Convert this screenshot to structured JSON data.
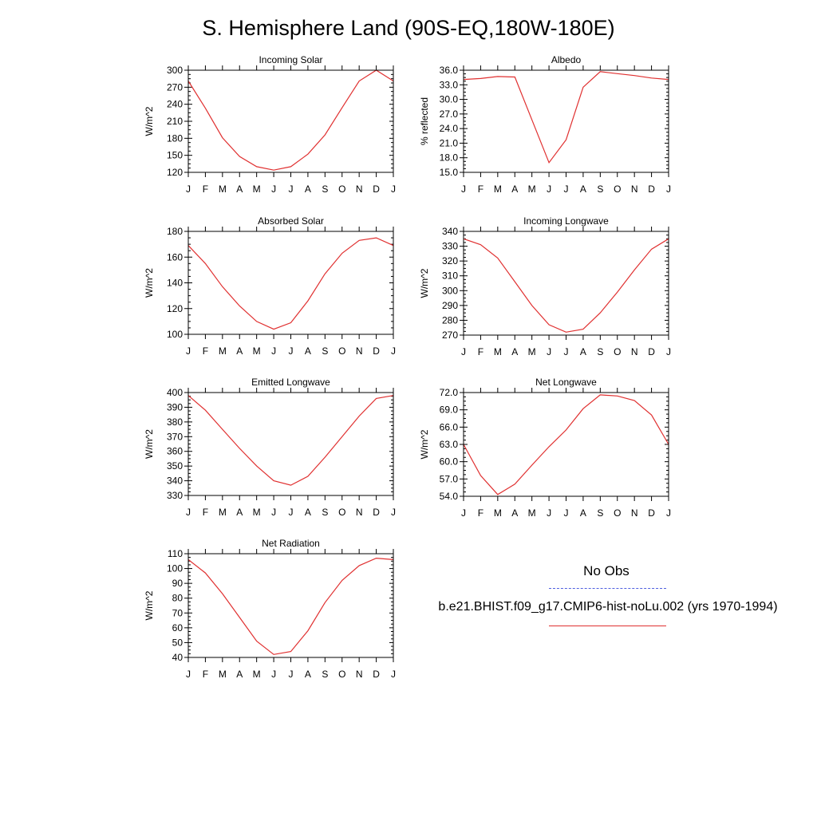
{
  "page_title": "S. Hemisphere Land (90S-EQ,180W-180E)",
  "legend": {
    "obs_label": "No Obs",
    "model_label": "b.e21.BHIST.f09_g17.CMIP6-hist-noLu.002 (yrs 1970-1994)",
    "obs_color": "#4f5fe0",
    "model_color": "#e03030"
  },
  "chart_data": [
    {
      "type": "line",
      "title": "Incoming Solar",
      "ylabel": "W/m^2",
      "x": [
        "J",
        "F",
        "M",
        "A",
        "M",
        "J",
        "J",
        "A",
        "S",
        "O",
        "N",
        "D",
        "J"
      ],
      "ylim": [
        120,
        300
      ],
      "yticks": [
        "120",
        "150",
        "180",
        "210",
        "240",
        "270",
        "300"
      ],
      "series": [
        {
          "values": [
            281,
            233,
            181,
            148,
            130,
            124,
            130,
            152,
            186,
            234,
            281,
            300,
            281
          ],
          "color": "#e03030"
        }
      ]
    },
    {
      "type": "line",
      "title": "Albedo",
      "ylabel": "% reflected",
      "x": [
        "J",
        "F",
        "M",
        "A",
        "M",
        "J",
        "J",
        "A",
        "S",
        "O",
        "N",
        "D",
        "J"
      ],
      "ylim": [
        15.0,
        36.0
      ],
      "yticks": [
        "15.0",
        "18.0",
        "21.0",
        "24.0",
        "27.0",
        "30.0",
        "33.0",
        "36.0"
      ],
      "series": [
        {
          "values": [
            34.1,
            34.3,
            34.7,
            34.6,
            25.8,
            17.0,
            21.7,
            32.5,
            35.7,
            35.3,
            34.9,
            34.4,
            34.1
          ],
          "color": "#e03030"
        }
      ]
    },
    {
      "type": "line",
      "title": "Absorbed Solar",
      "ylabel": "W/m^2",
      "x": [
        "J",
        "F",
        "M",
        "A",
        "M",
        "J",
        "J",
        "A",
        "S",
        "O",
        "N",
        "D",
        "J"
      ],
      "ylim": [
        100,
        180
      ],
      "yticks": [
        "100",
        "120",
        "140",
        "160",
        "180"
      ],
      "series": [
        {
          "values": [
            169,
            155,
            137,
            122,
            110,
            104,
            109,
            126,
            147,
            163,
            173,
            175,
            169
          ],
          "color": "#e03030"
        }
      ]
    },
    {
      "type": "line",
      "title": "Incoming Longwave",
      "ylabel": "W/m^2",
      "x": [
        "J",
        "F",
        "M",
        "A",
        "M",
        "J",
        "J",
        "A",
        "S",
        "O",
        "N",
        "D",
        "J"
      ],
      "ylim": [
        270,
        340
      ],
      "yticks": [
        "270",
        "280",
        "290",
        "300",
        "310",
        "320",
        "330",
        "340"
      ],
      "series": [
        {
          "values": [
            335,
            331,
            322,
            306,
            290,
            277,
            272,
            274,
            285,
            299,
            314,
            328,
            335
          ],
          "color": "#e03030"
        }
      ]
    },
    {
      "type": "line",
      "title": "Emitted Longwave",
      "ylabel": "W/m^2",
      "x": [
        "J",
        "F",
        "M",
        "A",
        "M",
        "J",
        "J",
        "A",
        "S",
        "O",
        "N",
        "D",
        "J"
      ],
      "ylim": [
        330,
        400
      ],
      "yticks": [
        "330",
        "340",
        "350",
        "360",
        "370",
        "380",
        "390",
        "400"
      ],
      "series": [
        {
          "values": [
            398,
            388,
            375,
            362,
            350,
            340,
            337,
            343,
            356,
            370,
            384,
            396,
            398
          ],
          "color": "#e03030"
        }
      ]
    },
    {
      "type": "line",
      "title": "Net Longwave",
      "ylabel": "W/m^2",
      "x": [
        "J",
        "F",
        "M",
        "A",
        "M",
        "J",
        "J",
        "A",
        "S",
        "O",
        "N",
        "D",
        "J"
      ],
      "ylim": [
        54.0,
        72.0
      ],
      "yticks": [
        "54.0",
        "57.0",
        "60.0",
        "63.0",
        "66.0",
        "69.0",
        "72.0"
      ],
      "series": [
        {
          "values": [
            63.0,
            57.6,
            54.3,
            56.1,
            59.4,
            62.6,
            65.5,
            69.2,
            71.6,
            71.4,
            70.6,
            68.1,
            63.0
          ],
          "color": "#e03030"
        }
      ]
    },
    {
      "type": "line",
      "title": "Net Radiation",
      "ylabel": "W/m^2",
      "x": [
        "J",
        "F",
        "M",
        "A",
        "M",
        "J",
        "J",
        "A",
        "S",
        "O",
        "N",
        "D",
        "J"
      ],
      "ylim": [
        40,
        110
      ],
      "yticks": [
        "40",
        "50",
        "60",
        "70",
        "80",
        "90",
        "100",
        "110"
      ],
      "series": [
        {
          "values": [
            106,
            97,
            83,
            67,
            51,
            42,
            44,
            58,
            77,
            92,
            102,
            107,
            106
          ],
          "color": "#e03030"
        }
      ]
    }
  ]
}
